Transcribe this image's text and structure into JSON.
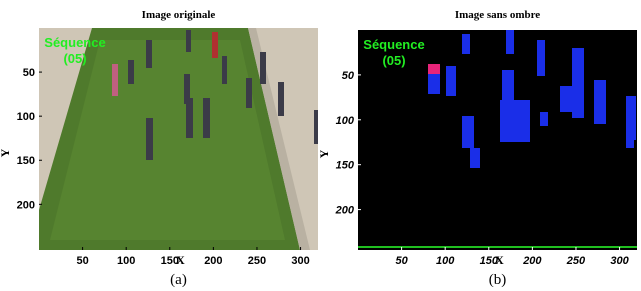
{
  "panels": [
    {
      "title": "Image originale",
      "overlay": [
        "Séquence",
        "(05)"
      ],
      "xlabel": "X",
      "ylabel": "Y",
      "xlim": [
        0,
        320
      ],
      "ylim": [
        0,
        245
      ],
      "xticks": [
        50,
        100,
        150,
        200,
        250,
        300
      ],
      "yticks": [
        50,
        100,
        150,
        200
      ],
      "caption": "(a)"
    },
    {
      "title": "Image sans ombre",
      "overlay": [
        "Séquence",
        "(05)"
      ],
      "xlabel": "X",
      "ylabel": "Y",
      "xlim": [
        0,
        320
      ],
      "ylim": [
        0,
        245
      ],
      "xticks": [
        50,
        100,
        150,
        200,
        250,
        300
      ],
      "yticks": [
        50,
        100,
        150,
        200
      ],
      "caption": "(b)"
    }
  ]
}
